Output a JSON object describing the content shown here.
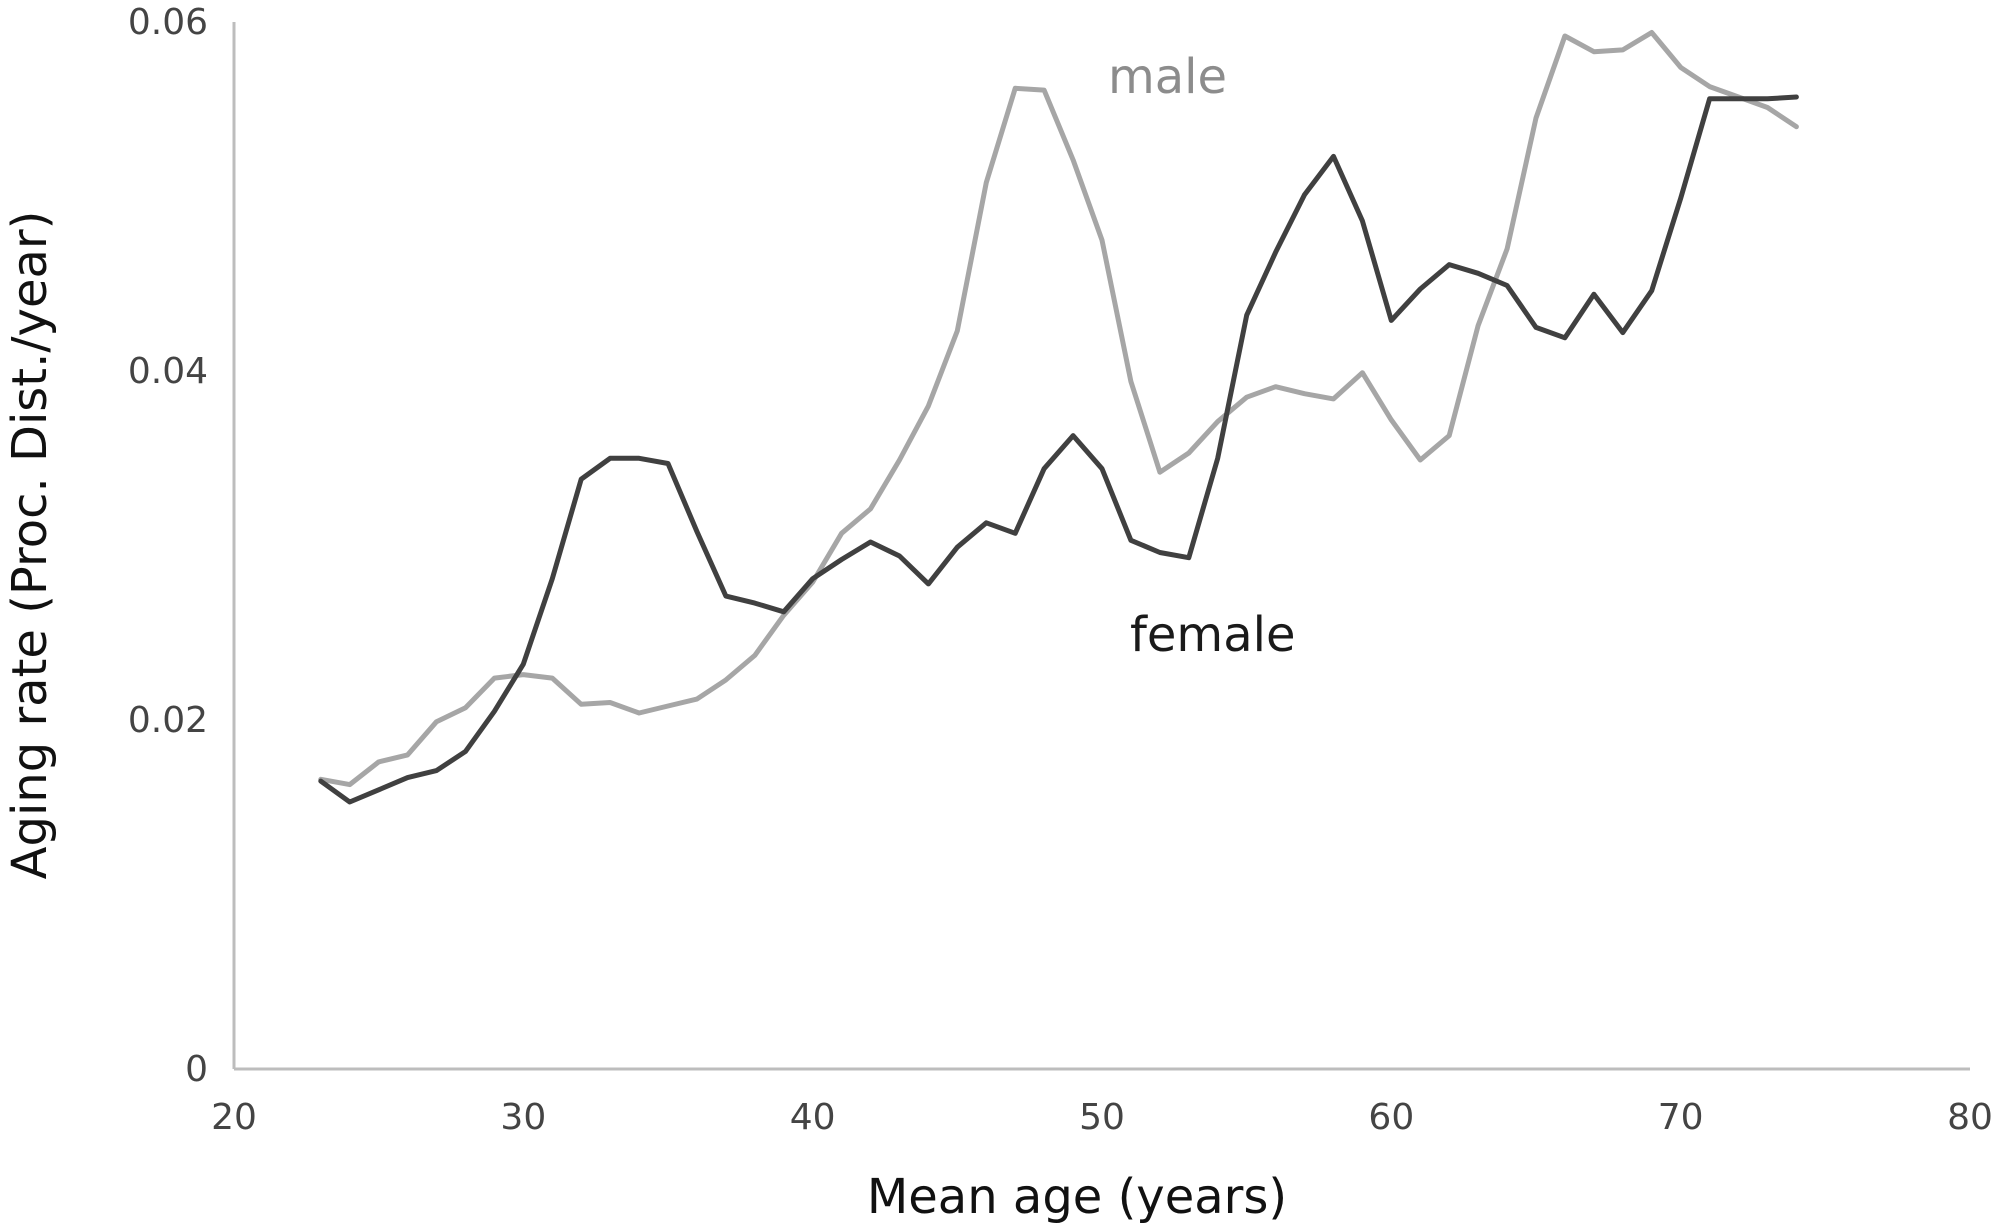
{
  "chart_data": {
    "type": "line",
    "title": "",
    "xlabel": "Mean age (years)",
    "ylabel": "Aging rate (Proc. Dist./year)",
    "xlim": [
      20,
      80
    ],
    "ylim": [
      0,
      0.06
    ],
    "x_ticks": [
      "20",
      "30",
      "40",
      "50",
      "60",
      "70",
      "80"
    ],
    "y_ticks": [
      "0",
      "0.02",
      "0.04",
      "0.06"
    ],
    "grid": false,
    "legend": "none",
    "series": [
      {
        "name": "male",
        "color": "#a6a6a6",
        "x": [
          23,
          24,
          25,
          26,
          27,
          28,
          29,
          30,
          31,
          32,
          33,
          34,
          35,
          36,
          37,
          38,
          39,
          40,
          41,
          42,
          43,
          44,
          45,
          46,
          47,
          48,
          49,
          50,
          51,
          52,
          53,
          54,
          55,
          56,
          57,
          58,
          59,
          60,
          61,
          62,
          63,
          64,
          65,
          66,
          67,
          68,
          69,
          70,
          71,
          72,
          73,
          74
        ],
        "y": [
          0.0166,
          0.0163,
          0.0176,
          0.018,
          0.0199,
          0.0207,
          0.0224,
          0.0226,
          0.0224,
          0.0209,
          0.021,
          0.0204,
          0.0208,
          0.0212,
          0.0223,
          0.0237,
          0.026,
          0.0279,
          0.0307,
          0.0321,
          0.0349,
          0.038,
          0.0423,
          0.0508,
          0.0562,
          0.0561,
          0.0521,
          0.0475,
          0.0394,
          0.0342,
          0.0353,
          0.0371,
          0.0385,
          0.0391,
          0.0387,
          0.0384,
          0.0399,
          0.0372,
          0.0349,
          0.0363,
          0.0426,
          0.047,
          0.0545,
          0.0592,
          0.0583,
          0.0584,
          0.0594,
          0.0574,
          0.0563,
          0.0557,
          0.0551,
          0.054
        ]
      },
      {
        "name": "female",
        "color": "#404040",
        "x": [
          23,
          24,
          25,
          26,
          27,
          28,
          29,
          30,
          31,
          32,
          33,
          34,
          35,
          36,
          37,
          38,
          39,
          40,
          41,
          42,
          43,
          44,
          45,
          46,
          47,
          48,
          49,
          50,
          51,
          52,
          53,
          54,
          55,
          56,
          57,
          58,
          59,
          60,
          61,
          62,
          63,
          64,
          65,
          66,
          67,
          68,
          69,
          70,
          71,
          72,
          73,
          74
        ],
        "y": [
          0.0165,
          0.0153,
          0.016,
          0.0167,
          0.0171,
          0.0182,
          0.0205,
          0.0232,
          0.0281,
          0.0338,
          0.035,
          0.035,
          0.0347,
          0.0308,
          0.0271,
          0.0267,
          0.0262,
          0.0281,
          0.0292,
          0.0302,
          0.0294,
          0.0278,
          0.0299,
          0.0313,
          0.0307,
          0.0344,
          0.0363,
          0.0344,
          0.0303,
          0.0296,
          0.0293,
          0.035,
          0.0432,
          0.0468,
          0.0501,
          0.0523,
          0.0486,
          0.0429,
          0.0447,
          0.0461,
          0.0456,
          0.0449,
          0.0425,
          0.0419,
          0.0444,
          0.0422,
          0.0446,
          0.0499,
          0.0556,
          0.0556,
          0.0556,
          0.0557
        ]
      }
    ]
  }
}
